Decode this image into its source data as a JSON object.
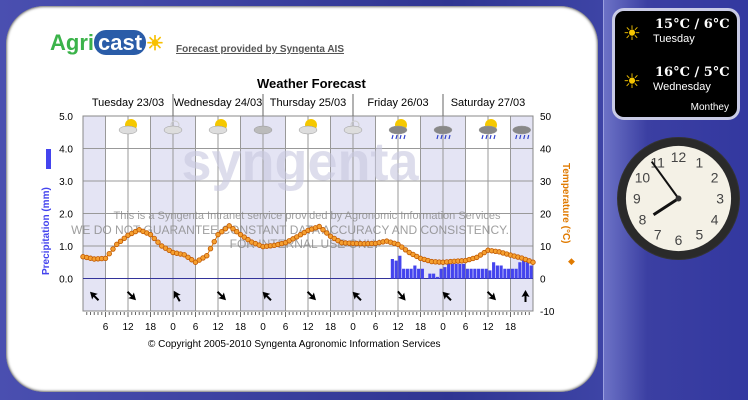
{
  "header": {
    "link": "Forecast provided by Syngenta AIS",
    "logo_text": "Agricast",
    "title": "Weather Forecast"
  },
  "days": [
    "Tuesday 23/03",
    "Wednesday 24/03",
    "Thursday 25/03",
    "Friday 26/03",
    "Saturday 27/03"
  ],
  "watermark": {
    "brand": "syngenta",
    "line1": "This is a Syngenta Intranet service provided by Agronomic Information Services",
    "line2": "WE DO NOT GUARANTEE CONSTANT DATA ACCURACY AND CONSISTENCY.",
    "line3": "FOR INTERNAL USE ONLY"
  },
  "footer": "© Copyright 2005-2010 Syngenta Agronomic Information Services",
  "gadget": {
    "location": "Monthey",
    "forecasts": [
      {
        "temps": "15°C / 6°C",
        "day": "Tuesday"
      },
      {
        "temps": "16°C / 5°C",
        "day": "Wednesday"
      }
    ]
  },
  "clock": {
    "hour": 7,
    "minute": 54
  },
  "colors": {
    "precip": "#4444ee",
    "temp": "#e07a00",
    "night": "#e4e4f4"
  },
  "chart_data": {
    "type": "bar+line",
    "title": "Weather Forecast",
    "ylabel_left": "Precipitation (mm)",
    "ylabel_right": "Temperature (°C)",
    "left_ticks": [
      "5.0",
      "4.0",
      "3.0",
      "2.0",
      "1.0",
      "0.0"
    ],
    "right_ticks": [
      "50",
      "40",
      "30",
      "20",
      "10",
      "0",
      "-10"
    ],
    "ylim_left": [
      0,
      5
    ],
    "ylim_right": [
      -10,
      50
    ],
    "x_tick_labels": [
      "6",
      "12",
      "18",
      "0",
      "6",
      "12",
      "18",
      "0",
      "6",
      "12",
      "18",
      "0",
      "6",
      "12",
      "18",
      "0",
      "6",
      "12",
      "18"
    ],
    "hours_total": 120,
    "temperature": {
      "interval_hours": 3,
      "values": [
        6.7,
        6.0,
        6.2,
        10.5,
        13.3,
        15.0,
        13.5,
        10,
        8,
        7.3,
        5.0,
        7.0,
        13.5,
        16.2,
        13.5,
        11.2,
        9.8,
        10.2,
        11,
        12.8,
        14.8,
        16,
        13,
        11,
        10.8,
        10.7,
        10.8,
        11.5,
        10.5,
        8,
        6.2,
        5.2,
        5,
        5.3,
        5.5,
        6.5,
        8.7,
        8.2,
        7.2,
        6.3,
        5
      ]
    },
    "precipitation": {
      "start_hour": 82,
      "interval_hours": 1,
      "values": [
        0.6,
        0.55,
        0.7,
        0.3,
        0.3,
        0.3,
        0.4,
        0.3,
        0.3,
        0,
        0.15,
        0.15,
        0.05,
        0.3,
        0.35,
        0.45,
        0.45,
        0.45,
        0.45,
        0.45,
        0.3,
        0.3,
        0.3,
        0.3,
        0.3,
        0.3,
        0.25,
        0.5,
        0.4,
        0.4,
        0.3,
        0.3,
        0.3,
        0.3,
        0.5,
        0.55,
        0.5,
        0.4
      ]
    },
    "weather_icons": [
      {
        "hour": 12,
        "type": "sun-cloud"
      },
      {
        "hour": 24,
        "type": "moon-cloud"
      },
      {
        "hour": 36,
        "type": "sun-cloud"
      },
      {
        "hour": 48,
        "type": "cloud"
      },
      {
        "hour": 60,
        "type": "sun-cloud"
      },
      {
        "hour": 72,
        "type": "moon-cloud"
      },
      {
        "hour": 84,
        "type": "sun-rain"
      },
      {
        "hour": 96,
        "type": "rain"
      },
      {
        "hour": 108,
        "type": "sun-rain"
      },
      {
        "hour": 117,
        "type": "rain"
      }
    ],
    "wind_arrows": [
      {
        "hour": 3,
        "dir_deg": 315
      },
      {
        "hour": 13,
        "dir_deg": 135
      },
      {
        "hour": 25,
        "dir_deg": 330
      },
      {
        "hour": 37,
        "dir_deg": 135
      },
      {
        "hour": 49,
        "dir_deg": 315
      },
      {
        "hour": 61,
        "dir_deg": 135
      },
      {
        "hour": 73,
        "dir_deg": 315
      },
      {
        "hour": 85,
        "dir_deg": 140
      },
      {
        "hour": 97,
        "dir_deg": 315
      },
      {
        "hour": 109,
        "dir_deg": 135
      },
      {
        "hour": 118,
        "dir_deg": 0
      }
    ]
  }
}
